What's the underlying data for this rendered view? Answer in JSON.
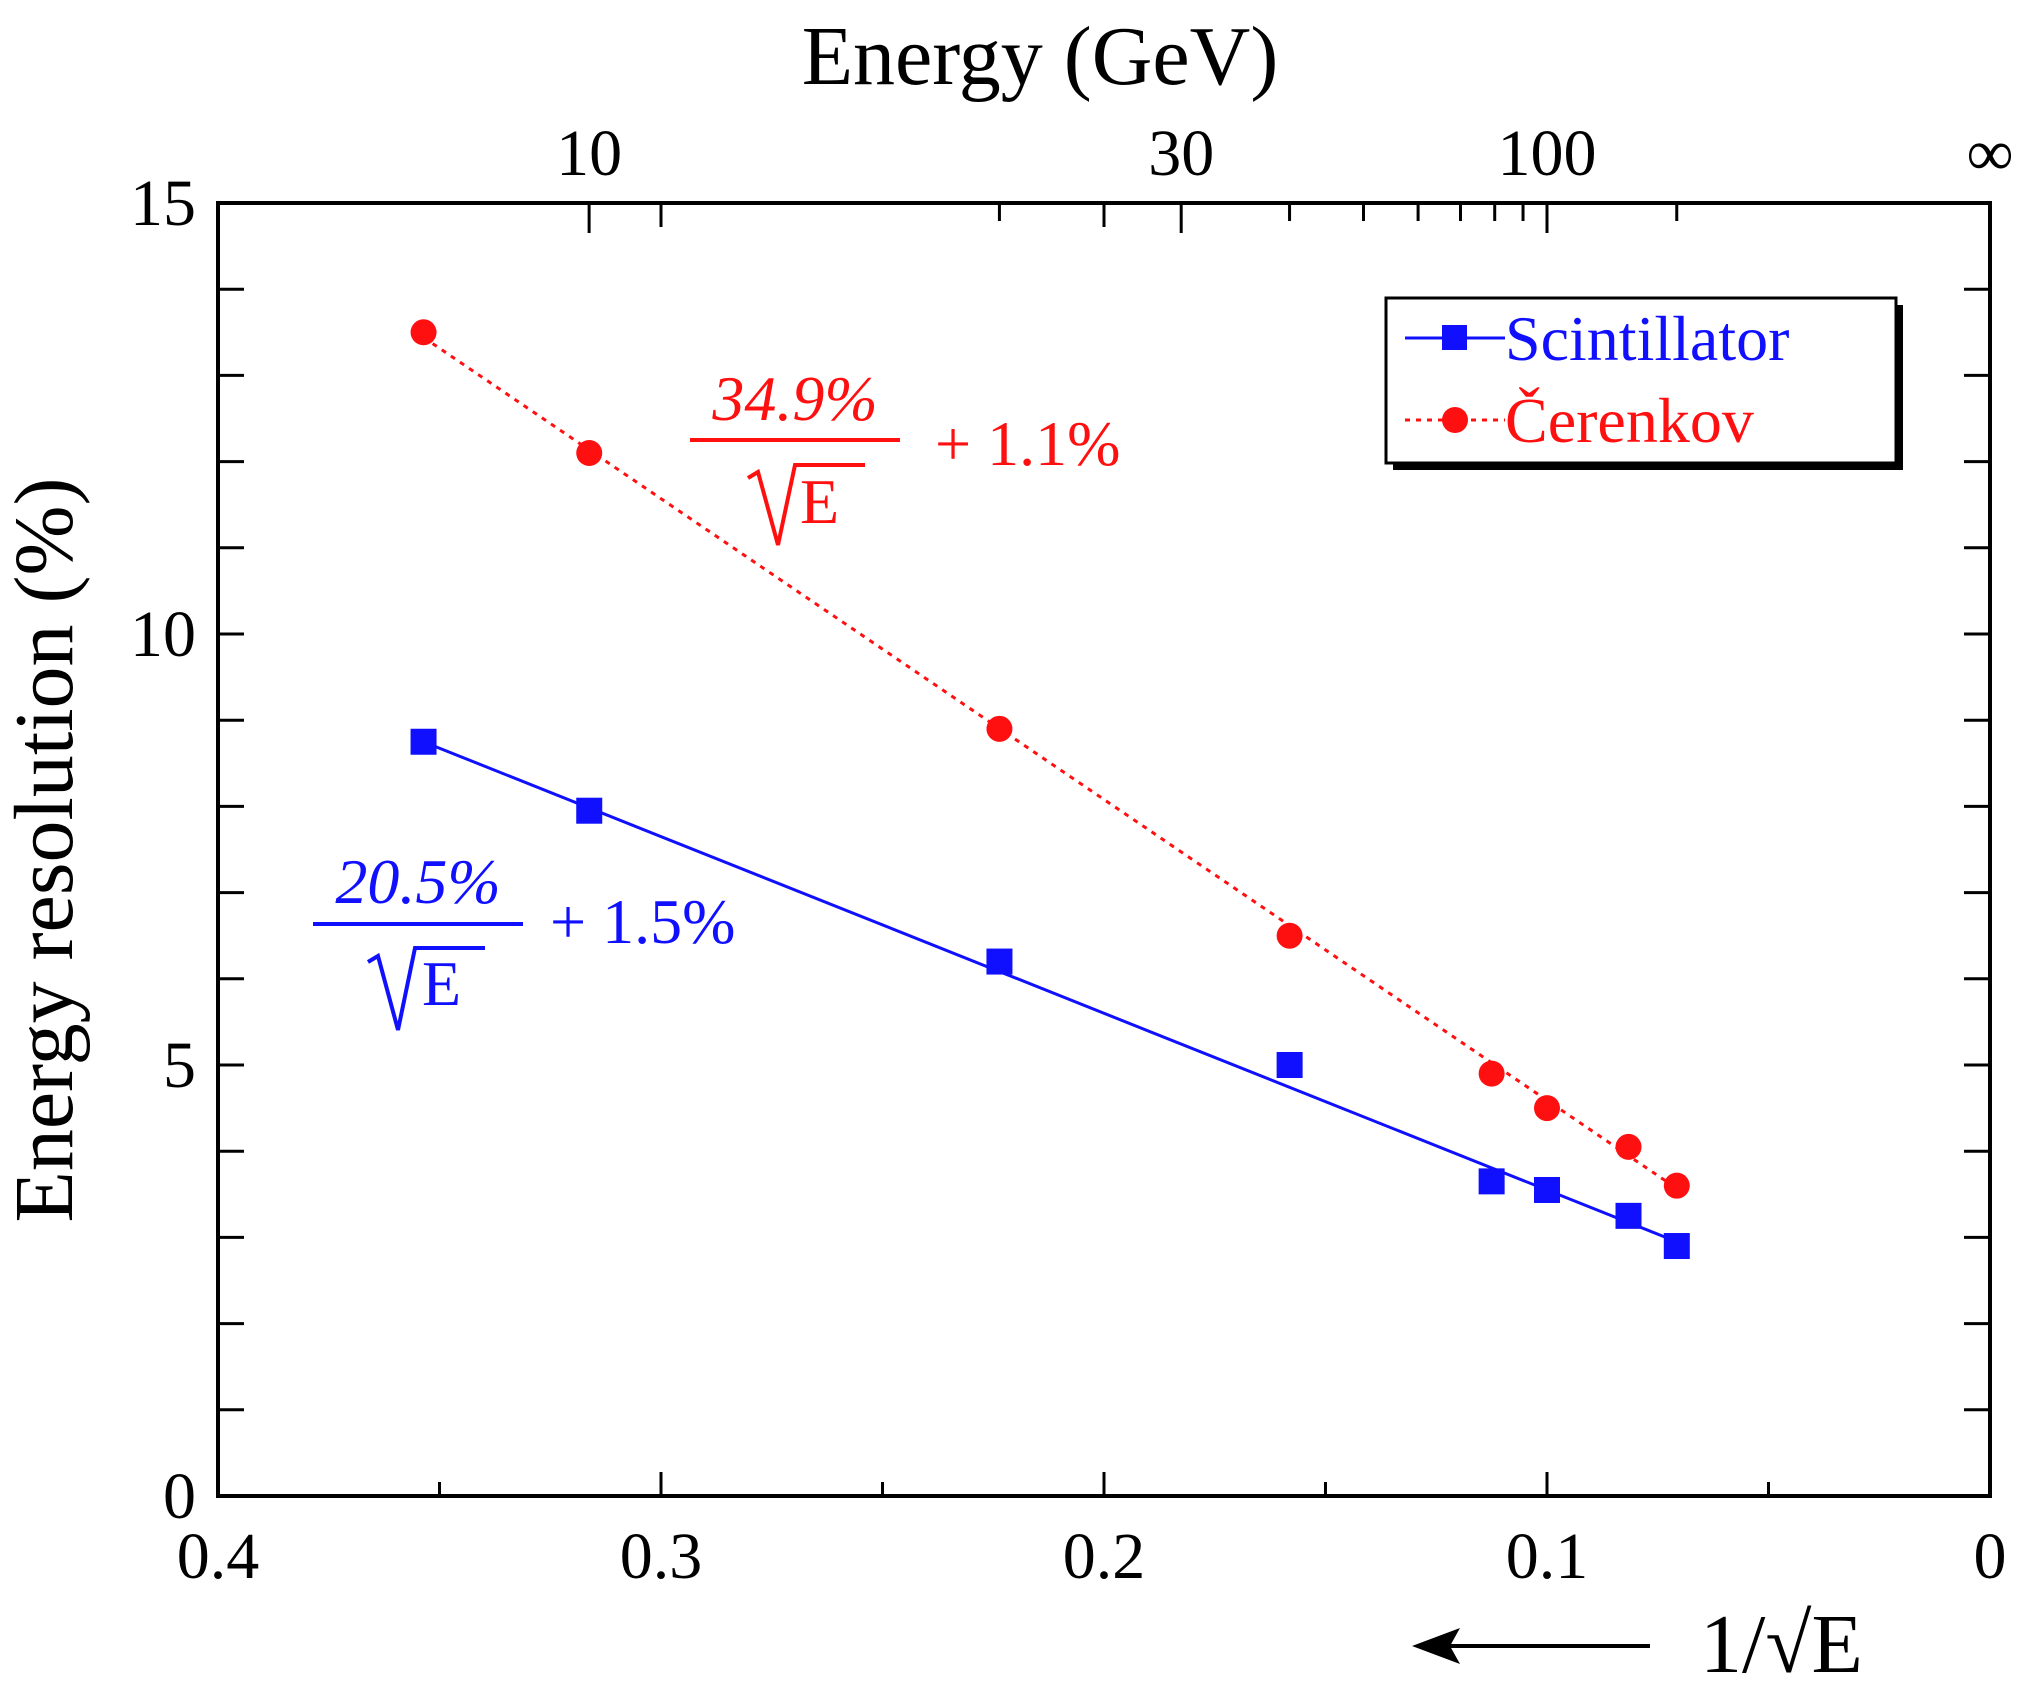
{
  "chart_data": {
    "type": "scatter",
    "top_axis_title": "Energy (GeV)",
    "top_axis_ticks": [
      {
        "label": "10",
        "energy": 10
      },
      {
        "label": "30",
        "energy": 30
      },
      {
        "label": "100",
        "energy": 100
      },
      {
        "label": "∞",
        "energy": null
      }
    ],
    "top_axis_minor_energies": [
      20,
      40,
      50,
      60,
      70,
      80,
      90,
      200
    ],
    "ylabel": "Energy resolution (%)",
    "xlabel": "1/√E",
    "xlim": [
      0.4,
      0
    ],
    "ylim": [
      0,
      15
    ],
    "x_ticks": [
      "0.4",
      "0.3",
      "0.2",
      "0.1",
      "0"
    ],
    "y_ticks": [
      "0",
      "5",
      "10",
      "15"
    ],
    "legend_position": "top-right",
    "colors": {
      "scintillator": "#1010ff",
      "cerenkov": "#ff1010"
    },
    "series": [
      {
        "name": "Scintillator",
        "marker": "square",
        "line": "solid",
        "points": [
          {
            "x": 0.3536,
            "y": 8.75
          },
          {
            "x": 0.3162,
            "y": 7.95
          },
          {
            "x": 0.2236,
            "y": 6.2
          },
          {
            "x": 0.1581,
            "y": 5.0
          },
          {
            "x": 0.1125,
            "y": 3.65
          },
          {
            "x": 0.1,
            "y": 3.55
          },
          {
            "x": 0.0816,
            "y": 3.25
          },
          {
            "x": 0.0707,
            "y": 2.9
          }
        ],
        "fit": {
          "slope": 20.5,
          "intercept": 1.5,
          "numerator": "20.5%",
          "denominator": "E",
          "constant": "+ 1.5%"
        }
      },
      {
        "name": "Čerenkov",
        "marker": "circle",
        "line": "dotted",
        "points": [
          {
            "x": 0.3536,
            "y": 13.5
          },
          {
            "x": 0.3162,
            "y": 12.1
          },
          {
            "x": 0.2236,
            "y": 8.9
          },
          {
            "x": 0.1581,
            "y": 6.5
          },
          {
            "x": 0.1125,
            "y": 4.9
          },
          {
            "x": 0.1,
            "y": 4.5
          },
          {
            "x": 0.0816,
            "y": 4.05
          },
          {
            "x": 0.0707,
            "y": 3.6
          }
        ],
        "fit": {
          "slope": 34.9,
          "intercept": 1.1,
          "numerator": "34.9%",
          "denominator": "E",
          "constant": "+ 1.1%"
        }
      }
    ]
  }
}
